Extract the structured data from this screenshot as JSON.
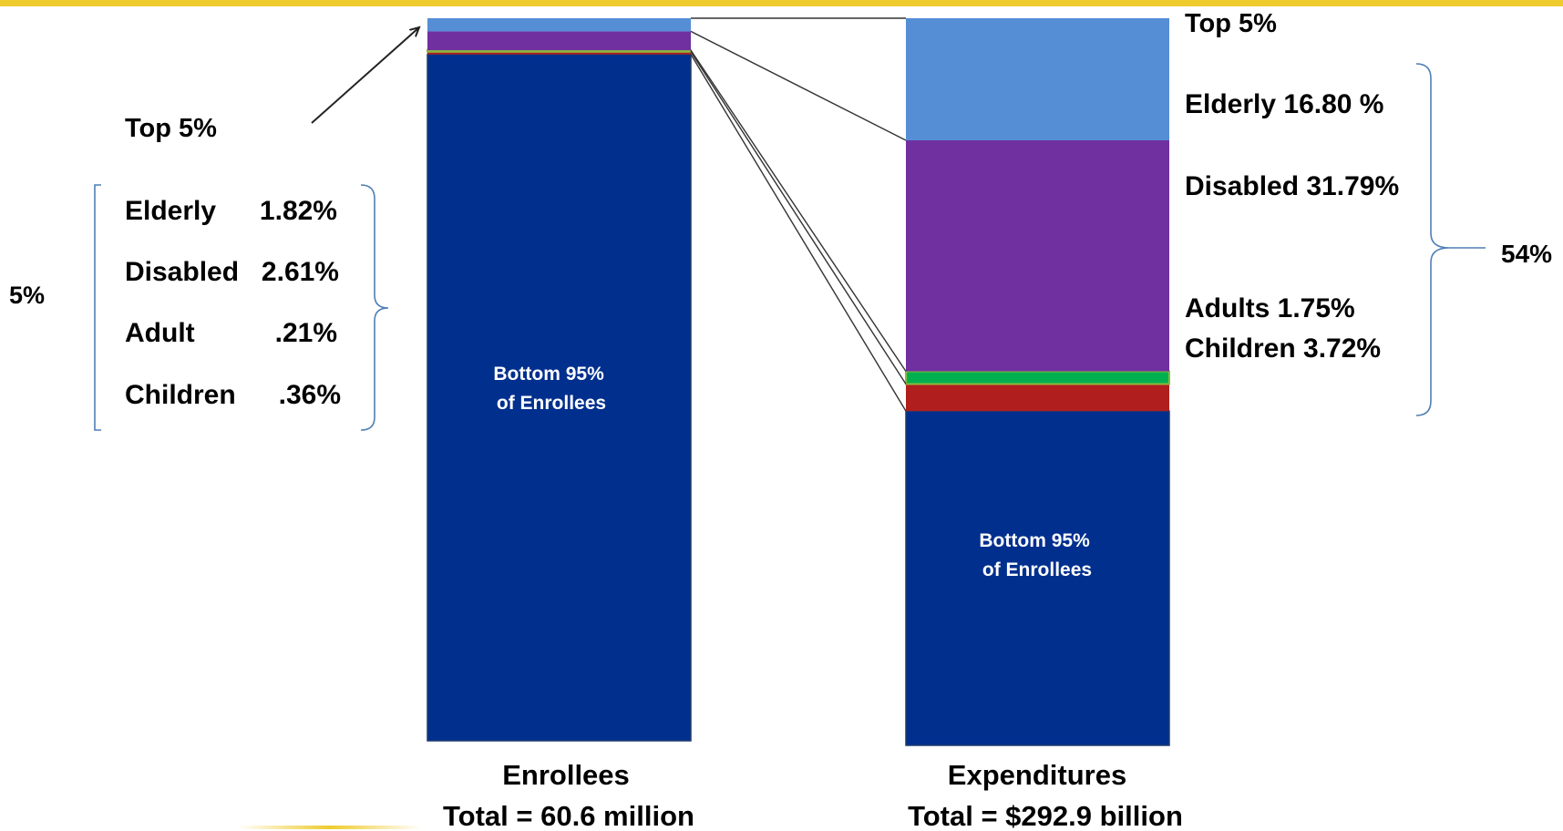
{
  "colors": {
    "top_bar": "#EFCB2E",
    "top5": "#558ED5",
    "elderly": "#7030A0",
    "adults": "#00B050",
    "adults_edge": "#8DB93E",
    "children": "#B01E1E",
    "bottom95": "#002F8E",
    "connector": "#333333",
    "brace": "#4F7EB5"
  },
  "chart_data": [
    {
      "type": "bar",
      "name": "enrollees",
      "title": "Enrollees",
      "subtitle": "Total = 60.6 million",
      "segments": [
        {
          "key": "bottom95",
          "label": "Bottom 95% of Enrollees",
          "value": 95.0,
          "color": "#002F8E"
        },
        {
          "key": "children",
          "label": "Children",
          "value": 0.36,
          "color": "#B01E1E"
        },
        {
          "key": "adults",
          "label": "Adult",
          "value": 0.21,
          "color": "#00B050"
        },
        {
          "key": "disabled",
          "label": "Disabled",
          "value": 2.61,
          "color": "#7030A0"
        },
        {
          "key": "elderly",
          "label": "Elderly",
          "value": 1.82,
          "color": "#558ED5"
        }
      ]
    },
    {
      "type": "bar",
      "name": "expenditures",
      "title": "Expenditures",
      "subtitle": "Total = $292.9 billion",
      "segments": [
        {
          "key": "bottom95",
          "label": "Bottom 95% of Enrollees",
          "value": 46.0,
          "color": "#002F8E"
        },
        {
          "key": "children",
          "label": "Children",
          "value": 3.72,
          "color": "#B01E1E"
        },
        {
          "key": "adults",
          "label": "Adults",
          "value": 1.75,
          "color": "#00B050"
        },
        {
          "key": "disabled",
          "label": "Disabled",
          "value": 31.79,
          "color": "#7030A0"
        },
        {
          "key": "elderly",
          "label": "Elderly",
          "value": 16.8,
          "color": "#558ED5"
        }
      ]
    }
  ],
  "in_bar_label": [
    "Bottom 95%",
    "of Enrollees"
  ],
  "left_panel": {
    "top_label": "Top 5%",
    "group_total": "5%",
    "rows": [
      {
        "name": "Elderly",
        "value": "1.82%"
      },
      {
        "name": "Disabled",
        "value": "2.61%"
      },
      {
        "name": "Adult",
        "value": ".21%"
      },
      {
        "name": "Children",
        "value": ".36%"
      }
    ]
  },
  "right_panel": {
    "top_label": "Top 5%",
    "group_total": "54%",
    "rows": [
      {
        "text": "Elderly 16.80 %"
      },
      {
        "text": "Disabled 31.79%"
      },
      {
        "text": "Adults 1.75%"
      },
      {
        "text": "Children 3.72%"
      }
    ]
  }
}
